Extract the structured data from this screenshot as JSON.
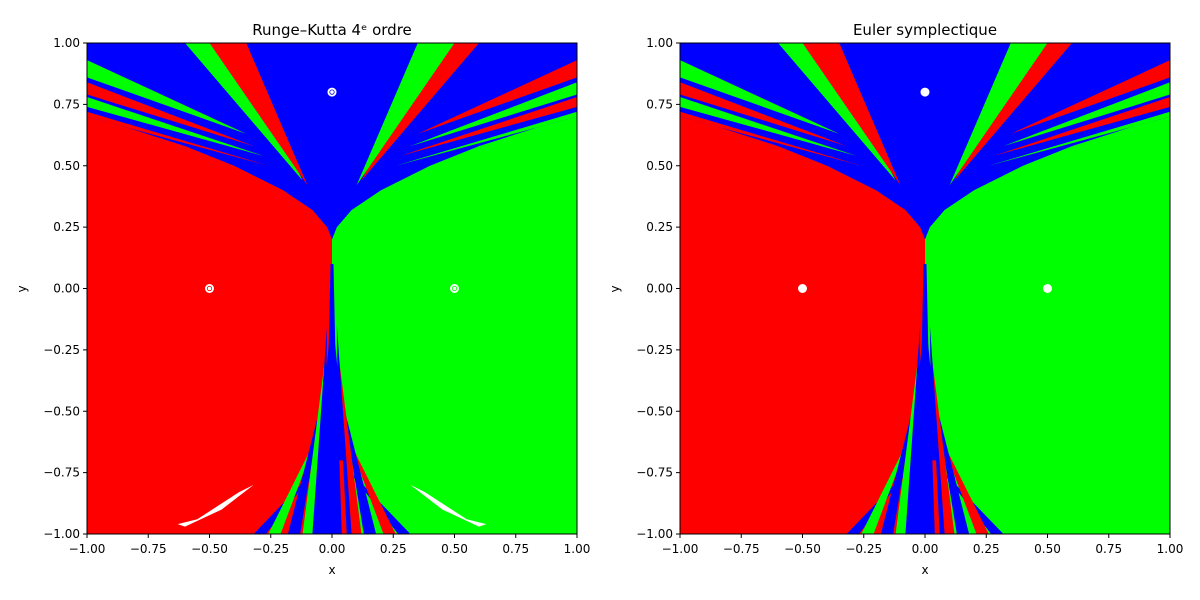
{
  "chart_data": [
    {
      "type": "heatmap",
      "title": "Runge–Kutta 4ᵉ ordre",
      "xlabel": "x",
      "ylabel": "y",
      "xlim": [
        -1.0,
        1.0
      ],
      "ylim": [
        -1.0,
        1.0
      ],
      "xticks": [
        "−1.00",
        "−0.75",
        "−0.50",
        "−0.25",
        "0.00",
        "0.25",
        "0.50",
        "0.75",
        "1.00"
      ],
      "yticks": [
        "1.00",
        "0.75",
        "0.50",
        "0.25",
        "0.00",
        "−0.25",
        "−0.50",
        "−0.75",
        "−1.00"
      ],
      "grid": false,
      "basin_colors": {
        "left_attractor": "#ff0000",
        "right_attractor": "#00ff00",
        "top_attractor": "#0000ff",
        "unclassified": "#ffffff"
      },
      "attractors": [
        {
          "x": -0.5,
          "y": 0.0,
          "color": "#ff0000"
        },
        {
          "x": 0.5,
          "y": 0.0,
          "color": "#00ff00"
        },
        {
          "x": 0.0,
          "y": 0.8,
          "color": "#0000ff"
        }
      ]
    },
    {
      "type": "heatmap",
      "title": "Euler symplectique",
      "xlabel": "x",
      "ylabel": "y",
      "xlim": [
        -1.0,
        1.0
      ],
      "ylim": [
        -1.0,
        1.0
      ],
      "xticks": [
        "−1.00",
        "−0.75",
        "−0.50",
        "−0.25",
        "0.00",
        "0.25",
        "0.50",
        "0.75",
        "1.00"
      ],
      "yticks": [
        "1.00",
        "0.75",
        "0.50",
        "0.25",
        "0.00",
        "−0.25",
        "−0.50",
        "−0.75",
        "−1.00"
      ],
      "grid": false,
      "basin_colors": {
        "left_attractor": "#ff0000",
        "right_attractor": "#00ff00",
        "top_attractor": "#0000ff",
        "unclassified": "#ffffff"
      },
      "attractors": [
        {
          "x": -0.5,
          "y": 0.0,
          "color": "#ff0000"
        },
        {
          "x": 0.5,
          "y": 0.0,
          "color": "#00ff00"
        },
        {
          "x": 0.0,
          "y": 0.8,
          "color": "#0000ff"
        }
      ]
    }
  ]
}
